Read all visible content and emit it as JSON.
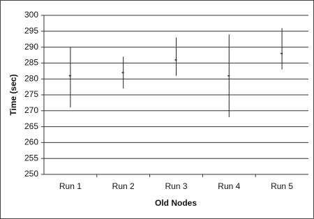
{
  "chart_data": {
    "type": "hilo",
    "x_label": "Old Nodes",
    "y_label": "Time (sec)",
    "categories": [
      "Run 1",
      "Run 2",
      "Run 3",
      "Run 4",
      "Run 5"
    ],
    "values": [
      281,
      282,
      286,
      281,
      288
    ],
    "low": [
      271,
      277,
      281,
      268,
      283
    ],
    "high": [
      290,
      287,
      293,
      294,
      296
    ],
    "color": "#222222",
    "ylim": [
      250,
      300
    ],
    "yticks": [
      250,
      255,
      260,
      265,
      270,
      275,
      280,
      285,
      290,
      295,
      300
    ],
    "grid": true
  }
}
